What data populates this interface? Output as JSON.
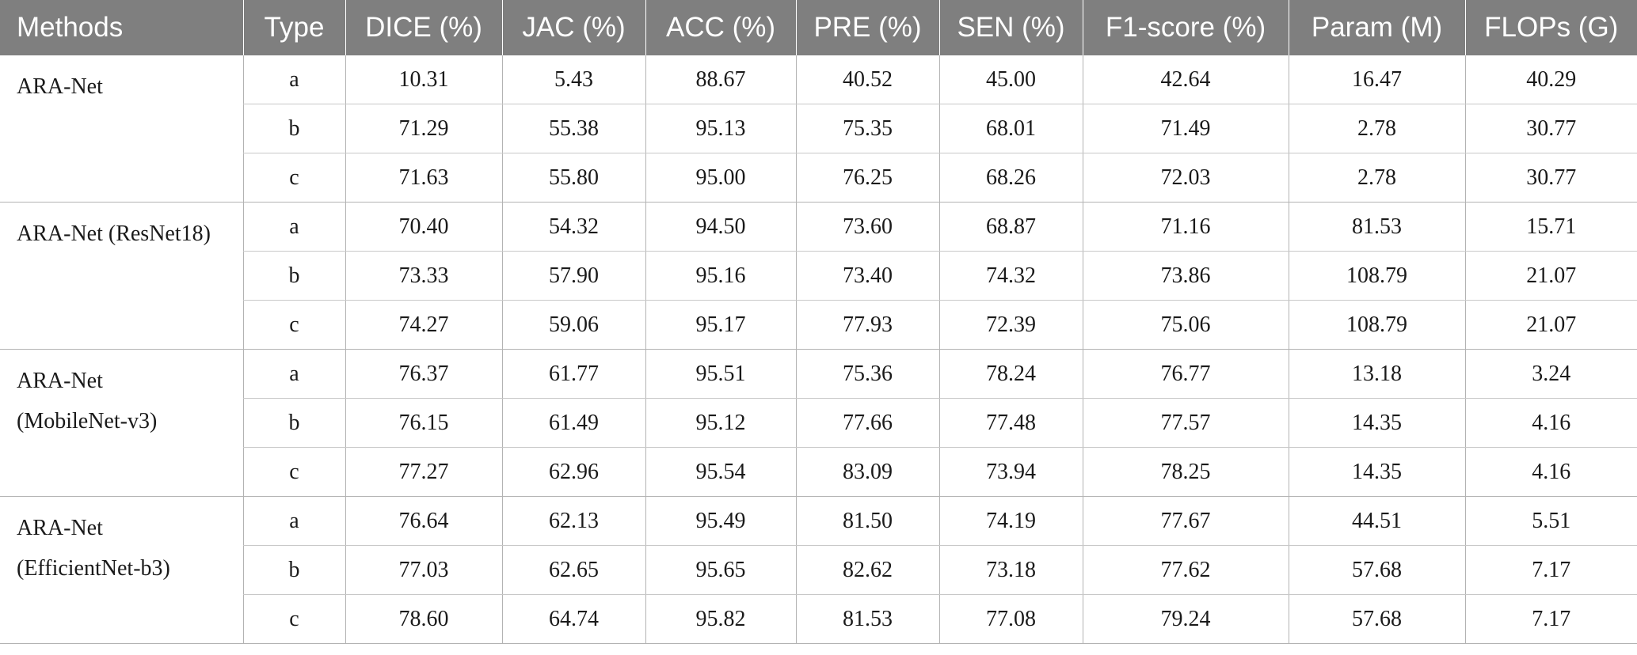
{
  "columns": [
    "Methods",
    "Type",
    "DICE (%)",
    "JAC (%)",
    "ACC (%)",
    "PRE (%)",
    "SEN (%)",
    "F1-score (%)",
    "Param (M)",
    "FLOPs (G)"
  ],
  "groups": [
    {
      "method_lines": [
        "ARA-Net"
      ],
      "rows": [
        {
          "type": "a",
          "dice": "10.31",
          "jac": "5.43",
          "acc": "88.67",
          "pre": "40.52",
          "sen": "45.00",
          "f1": "42.64",
          "param": "16.47",
          "flops": "40.29"
        },
        {
          "type": "b",
          "dice": "71.29",
          "jac": "55.38",
          "acc": "95.13",
          "pre": "75.35",
          "sen": "68.01",
          "f1": "71.49",
          "param": "2.78",
          "flops": "30.77"
        },
        {
          "type": "c",
          "dice": "71.63",
          "jac": "55.80",
          "acc": "95.00",
          "pre": "76.25",
          "sen": "68.26",
          "f1": "72.03",
          "param": "2.78",
          "flops": "30.77"
        }
      ]
    },
    {
      "method_lines": [
        "ARA-Net (ResNet18)"
      ],
      "rows": [
        {
          "type": "a",
          "dice": "70.40",
          "jac": "54.32",
          "acc": "94.50",
          "pre": "73.60",
          "sen": "68.87",
          "f1": "71.16",
          "param": "81.53",
          "flops": "15.71"
        },
        {
          "type": "b",
          "dice": "73.33",
          "jac": "57.90",
          "acc": "95.16",
          "pre": "73.40",
          "sen": "74.32",
          "f1": "73.86",
          "param": "108.79",
          "flops": "21.07"
        },
        {
          "type": "c",
          "dice": "74.27",
          "jac": "59.06",
          "acc": "95.17",
          "pre": "77.93",
          "sen": "72.39",
          "f1": "75.06",
          "param": "108.79",
          "flops": "21.07"
        }
      ]
    },
    {
      "method_lines": [
        "ARA-Net",
        "(MobileNet-v3)"
      ],
      "rows": [
        {
          "type": "a",
          "dice": "76.37",
          "jac": "61.77",
          "acc": "95.51",
          "pre": "75.36",
          "sen": "78.24",
          "f1": "76.77",
          "param": "13.18",
          "flops": "3.24"
        },
        {
          "type": "b",
          "dice": "76.15",
          "jac": "61.49",
          "acc": "95.12",
          "pre": "77.66",
          "sen": "77.48",
          "f1": "77.57",
          "param": "14.35",
          "flops": "4.16"
        },
        {
          "type": "c",
          "dice": "77.27",
          "jac": "62.96",
          "acc": "95.54",
          "pre": "83.09",
          "sen": "73.94",
          "f1": "78.25",
          "param": "14.35",
          "flops": "4.16"
        }
      ]
    },
    {
      "method_lines": [
        "ARA-Net",
        "(EfficientNet-b3)"
      ],
      "rows": [
        {
          "type": "a",
          "dice": "76.64",
          "jac": "62.13",
          "acc": "95.49",
          "pre": "81.50",
          "sen": "74.19",
          "f1": "77.67",
          "param": "44.51",
          "flops": "5.51"
        },
        {
          "type": "b",
          "dice": "77.03",
          "jac": "62.65",
          "acc": "95.65",
          "pre": "82.62",
          "sen": "73.18",
          "f1": "77.62",
          "param": "57.68",
          "flops": "7.17"
        },
        {
          "type": "c",
          "dice": "78.60",
          "jac": "64.74",
          "acc": "95.82",
          "pre": "81.53",
          "sen": "77.08",
          "f1": "79.24",
          "param": "57.68",
          "flops": "7.17"
        }
      ]
    }
  ],
  "colors": {
    "header_bg": "#7f7f7f",
    "header_text": "#ffffff",
    "grid": "#b3b3b3"
  }
}
